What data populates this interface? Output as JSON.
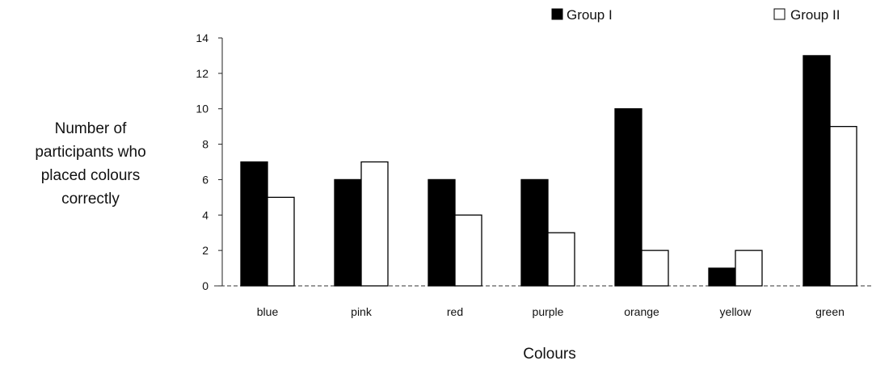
{
  "chart_data": {
    "type": "bar",
    "categories": [
      "blue",
      "pink",
      "red",
      "purple",
      "orange",
      "yellow",
      "green"
    ],
    "series": [
      {
        "name": "Group I",
        "color": "#000000",
        "values": [
          7,
          6,
          6,
          6,
          10,
          1,
          13
        ]
      },
      {
        "name": "Group II",
        "color": "#ffffff",
        "values": [
          5,
          7,
          4,
          3,
          2,
          2,
          9
        ]
      }
    ],
    "ylabel": [
      "Number of",
      "participants who",
      "placed colours",
      "correctly"
    ],
    "xlabel": "Colours",
    "ylim": [
      0,
      14
    ],
    "yticks": [
      "0",
      "2",
      "4",
      "6",
      "8",
      "10",
      "12",
      "14"
    ],
    "grid": false,
    "legend_position": "top-right"
  }
}
